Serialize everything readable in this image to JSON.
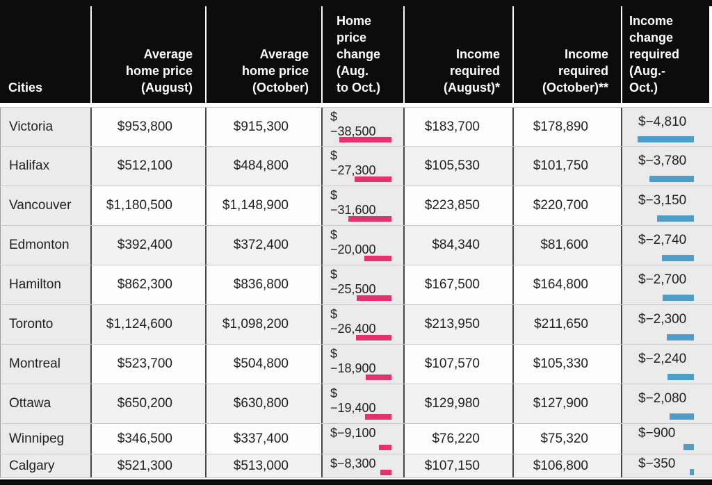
{
  "colors": {
    "header_bg": "#0c0c0c",
    "price_change_bar": "#e7316d",
    "income_change_bar": "#4c9ec9",
    "row_bg": "#fdfdfd",
    "row_alt_bg": "#f2f2f2",
    "gray_col_bg": "#eaeaea"
  },
  "headers": {
    "cities": "Cities",
    "aug_price": "Average\nhome price\n(August)",
    "oct_price": "Average\nhome price\n(October)",
    "price_change": "Home\nprice\nchange\n(Aug.\nto Oct.)",
    "income_aug": "Income\nrequired\n(August)*",
    "income_oct": "Income\nrequired\n(October)**",
    "income_change": "Income\nchange\nrequired\n(Aug.-\nOct.)"
  },
  "rows": [
    {
      "city": "Victoria",
      "aug_price": "$953,800",
      "oct_price": "$915,300",
      "price_change": "$\n−38,500",
      "price_change_value": -38500,
      "income_aug": "$183,700",
      "income_oct": "$178,890",
      "income_change": "$−4,810",
      "income_change_value": -4810
    },
    {
      "city": "Halifax",
      "aug_price": "$512,100",
      "oct_price": "$484,800",
      "price_change": "$\n−27,300",
      "price_change_value": -27300,
      "income_aug": "$105,530",
      "income_oct": "$101,750",
      "income_change": "$−3,780",
      "income_change_value": -3780
    },
    {
      "city": "Vancouver",
      "aug_price": "$1,180,500",
      "oct_price": "$1,148,900",
      "price_change": "$\n−31,600",
      "price_change_value": -31600,
      "income_aug": "$223,850",
      "income_oct": "$220,700",
      "income_change": "$−3,150",
      "income_change_value": -3150
    },
    {
      "city": "Edmonton",
      "aug_price": "$392,400",
      "oct_price": "$372,400",
      "price_change": "$\n−20,000",
      "price_change_value": -20000,
      "income_aug": "$84,340",
      "income_oct": "$81,600",
      "income_change": "$−2,740",
      "income_change_value": -2740
    },
    {
      "city": "Hamilton",
      "aug_price": "$862,300",
      "oct_price": "$836,800",
      "price_change": "$\n−25,500",
      "price_change_value": -25500,
      "income_aug": "$167,500",
      "income_oct": "$164,800",
      "income_change": "$−2,700",
      "income_change_value": -2700
    },
    {
      "city": "Toronto",
      "aug_price": "$1,124,600",
      "oct_price": "$1,098,200",
      "price_change": "$\n−26,400",
      "price_change_value": -26400,
      "income_aug": "$213,950",
      "income_oct": "$211,650",
      "income_change": "$−2,300",
      "income_change_value": -2300
    },
    {
      "city": "Montreal",
      "aug_price": "$523,700",
      "oct_price": "$504,800",
      "price_change": "$\n−18,900",
      "price_change_value": -18900,
      "income_aug": "$107,570",
      "income_oct": "$105,330",
      "income_change": "$−2,240",
      "income_change_value": -2240
    },
    {
      "city": "Ottawa",
      "aug_price": "$650,200",
      "oct_price": "$630,800",
      "price_change": "$\n−19,400",
      "price_change_value": -19400,
      "income_aug": "$129,980",
      "income_oct": "$127,900",
      "income_change": "$−2,080",
      "income_change_value": -2080
    },
    {
      "city": "Winnipeg",
      "aug_price": "$346,500",
      "oct_price": "$337,400",
      "price_change": "$−9,100",
      "price_change_value": -9100,
      "income_aug": "$76,220",
      "income_oct": "$75,320",
      "income_change": "$−900",
      "income_change_value": -900
    },
    {
      "city": "Calgary",
      "aug_price": "$521,300",
      "oct_price": "$513,000",
      "price_change": "$−8,300",
      "price_change_value": -8300,
      "income_aug": "$107,150",
      "income_oct": "$106,800",
      "income_change": "$−350",
      "income_change_value": -350
    }
  ],
  "chart_data": {
    "type": "table",
    "title": "",
    "columns": [
      "Cities",
      "Average home price (August)",
      "Average home price (October)",
      "Home price change (Aug. to Oct.)",
      "Income required (August)*",
      "Income required (October)**",
      "Income change required (Aug.-Oct.)"
    ],
    "rows": [
      [
        "Victoria",
        953800,
        915300,
        -38500,
        183700,
        178890,
        -4810
      ],
      [
        "Halifax",
        512100,
        484800,
        -27300,
        105530,
        101750,
        -3780
      ],
      [
        "Vancouver",
        1180500,
        1148900,
        -31600,
        223850,
        220700,
        -3150
      ],
      [
        "Edmonton",
        392400,
        372400,
        -20000,
        84340,
        81600,
        -2740
      ],
      [
        "Hamilton",
        862300,
        836800,
        -25500,
        167500,
        164800,
        -2700
      ],
      [
        "Toronto",
        1124600,
        1098200,
        -26400,
        213950,
        211650,
        -2300
      ],
      [
        "Montreal",
        523700,
        504800,
        -18900,
        107570,
        105330,
        -2240
      ],
      [
        "Ottawa",
        650200,
        630800,
        -19400,
        129980,
        127900,
        -2080
      ],
      [
        "Winnipeg",
        346500,
        337400,
        -9100,
        76220,
        75320,
        -900
      ],
      [
        "Calgary",
        521300,
        513000,
        -8300,
        107150,
        106800,
        -350
      ]
    ],
    "embedded_bars": [
      {
        "column": "Home price change (Aug. to Oct.)",
        "color": "#e7316d",
        "alignment": "right",
        "max_abs_value": 38500
      },
      {
        "column": "Income change required (Aug.-Oct.)",
        "color": "#4c9ec9",
        "alignment": "right",
        "max_abs_value": 4810
      }
    ],
    "legend_position": "none",
    "grid": true
  }
}
